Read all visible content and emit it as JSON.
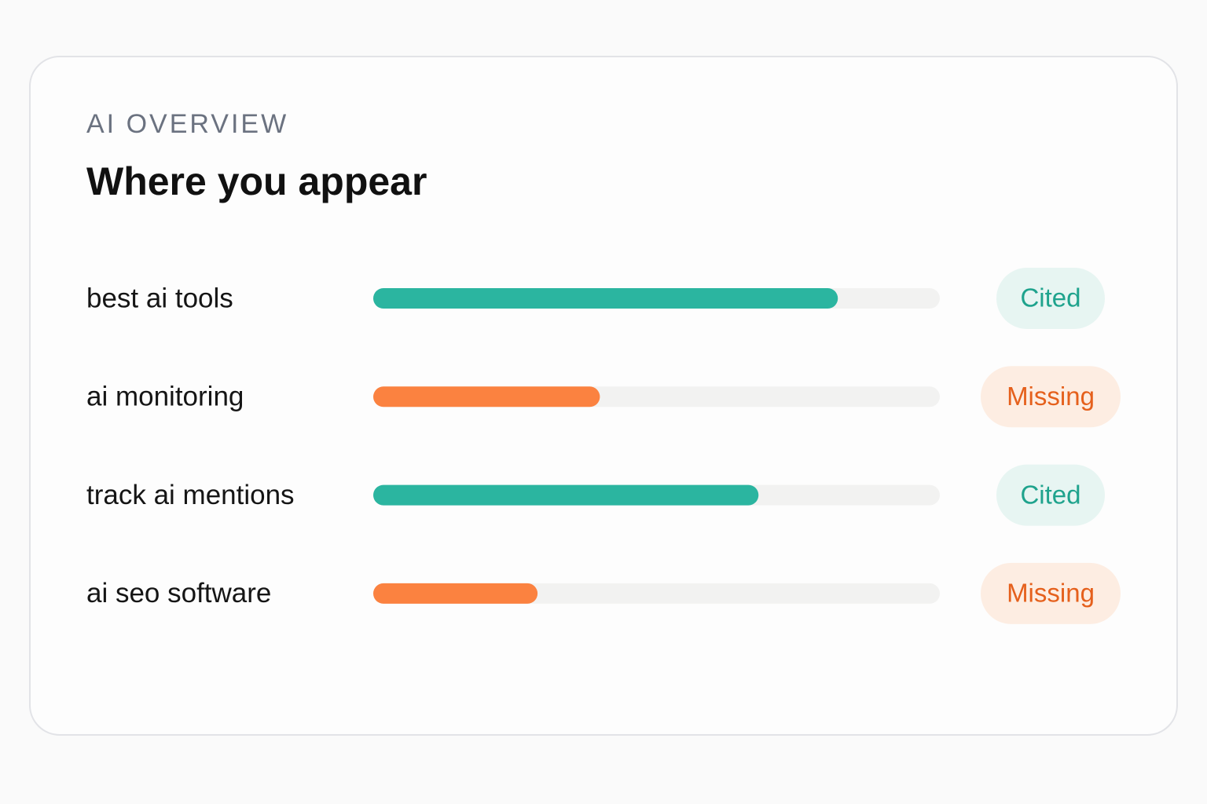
{
  "card": {
    "eyebrow": "AI OVERVIEW",
    "title": "Where you appear",
    "scale": [
      0,
      100
    ],
    "rows": [
      {
        "label": "best ai tools",
        "value": 82,
        "color": "#2bb5a0",
        "status": "Cited",
        "status_color": "#1fa38d",
        "status_bg": "#e7f5f2"
      },
      {
        "label": "ai monitoring",
        "value": 40,
        "color": "#fb8240",
        "status": "Missing",
        "status_color": "#e5601c",
        "status_bg": "#fdede2"
      },
      {
        "label": "track ai mentions",
        "value": 68,
        "color": "#2bb5a0",
        "status": "Cited",
        "status_color": "#1fa38d",
        "status_bg": "#e7f5f2"
      },
      {
        "label": "ai seo software",
        "value": 29,
        "color": "#fb8240",
        "status": "Missing",
        "status_color": "#e5601c",
        "status_bg": "#fdede2"
      }
    ]
  }
}
